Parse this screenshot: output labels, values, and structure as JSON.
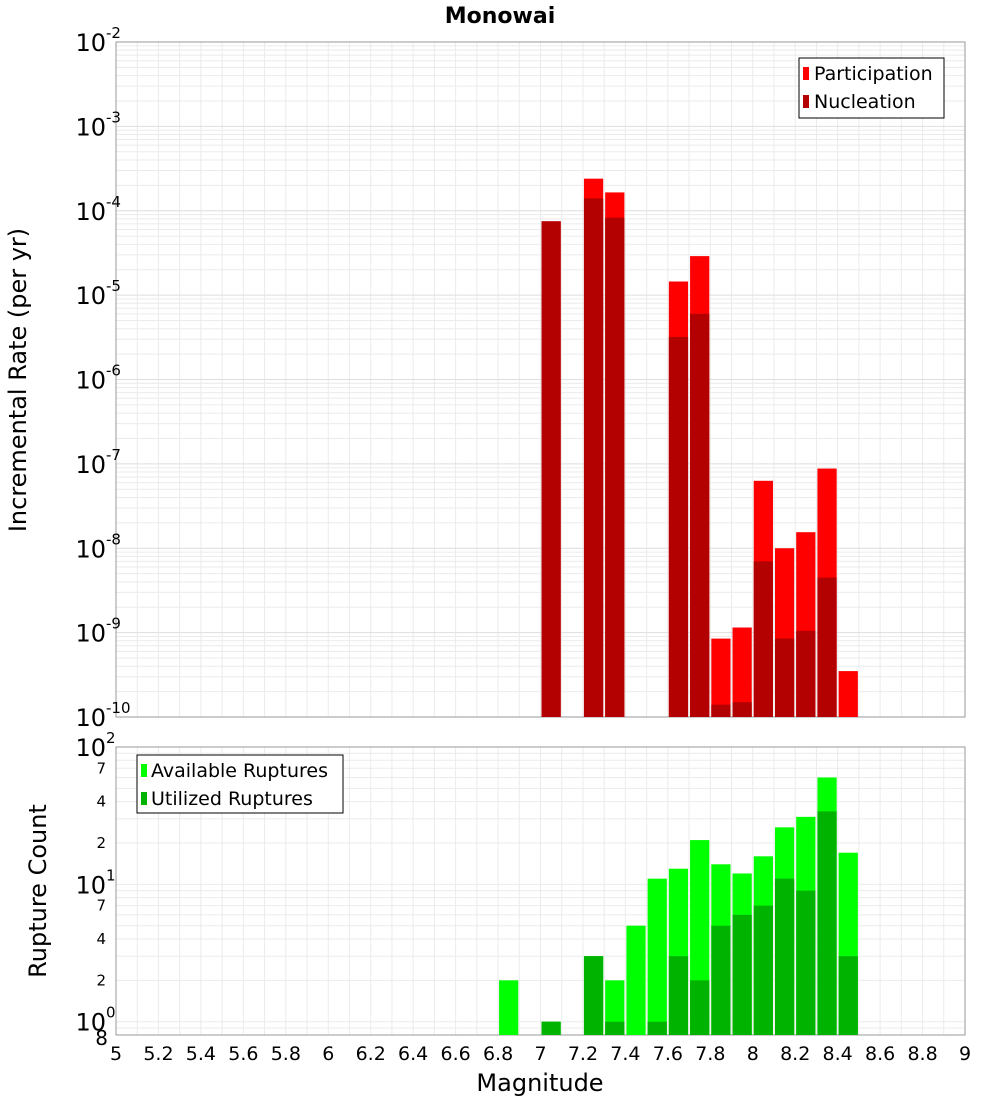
{
  "chart_data": [
    {
      "type": "bar",
      "title": "Monowai",
      "xlabel": "",
      "ylabel": "Incremental Rate (per yr)",
      "yscale": "log",
      "ylim": [
        1e-10,
        0.01
      ],
      "xlim": [
        5,
        9
      ],
      "bin_width": 0.1,
      "legend_position": "top-right",
      "y_decades": [
        {
          "base": "10",
          "exp": "-10",
          "value": 1e-10
        },
        {
          "base": "10",
          "exp": "-9",
          "value": 1e-09
        },
        {
          "base": "10",
          "exp": "-8",
          "value": 1e-08
        },
        {
          "base": "10",
          "exp": "-7",
          "value": 1e-07
        },
        {
          "base": "10",
          "exp": "-6",
          "value": 1e-06
        },
        {
          "base": "10",
          "exp": "-5",
          "value": 1e-05
        },
        {
          "base": "10",
          "exp": "-4",
          "value": 0.0001
        },
        {
          "base": "10",
          "exp": "-3",
          "value": 0.001
        },
        {
          "base": "10",
          "exp": "-2",
          "value": 0.01
        }
      ],
      "series": [
        {
          "name": "Participation",
          "color": "#ff0000",
          "x": [
            7.05,
            7.25,
            7.35,
            7.65,
            7.75,
            7.85,
            7.95,
            8.05,
            8.15,
            8.25,
            8.35,
            8.45
          ],
          "values": [
            7.5e-05,
            0.00024,
            0.000165,
            1.45e-05,
            2.9e-05,
            8.5e-10,
            1.15e-09,
            6.3e-08,
            1e-08,
            1.55e-08,
            8.8e-08,
            3.5e-10
          ]
        },
        {
          "name": "Nucleation",
          "color": "#b30000",
          "x": [
            7.05,
            7.25,
            7.35,
            7.65,
            7.75,
            7.85,
            7.95,
            8.05,
            8.15,
            8.25,
            8.35
          ],
          "values": [
            7.5e-05,
            0.00014,
            8.3e-05,
            3.2e-06,
            6e-06,
            1.4e-10,
            1.5e-10,
            7e-09,
            8.5e-10,
            1.05e-09,
            4.5e-09
          ]
        }
      ]
    },
    {
      "type": "bar",
      "title": "",
      "xlabel": "Magnitude",
      "ylabel": "Rupture Count",
      "yscale": "log",
      "ylim": [
        0.8,
        100
      ],
      "xlim": [
        5,
        9
      ],
      "bin_width": 0.1,
      "legend_position": "top-left",
      "x_ticks": [
        "5",
        "5.2",
        "5.4",
        "5.6",
        "5.8",
        "6",
        "6.2",
        "6.4",
        "6.6",
        "6.8",
        "7",
        "7.2",
        "7.4",
        "7.6",
        "7.8",
        "8",
        "8.2",
        "8.4",
        "8.6",
        "8.8",
        "9"
      ],
      "y_major_ticks": [
        {
          "base": "10",
          "exp": "0",
          "value": 1
        },
        {
          "base": "10",
          "exp": "1",
          "value": 10
        },
        {
          "base": "10",
          "exp": "2",
          "value": 100
        }
      ],
      "y_minor_ticks": [
        {
          "label": "8",
          "value": 0.8
        },
        {
          "label": "2",
          "value": 2
        },
        {
          "label": "4",
          "value": 4
        },
        {
          "label": "7",
          "value": 7
        },
        {
          "label": "2",
          "value": 20
        },
        {
          "label": "4",
          "value": 40
        },
        {
          "label": "7",
          "value": 70
        }
      ],
      "series": [
        {
          "name": "Available Ruptures",
          "color": "#00ff00",
          "x": [
            6.85,
            7.05,
            7.25,
            7.35,
            7.45,
            7.55,
            7.65,
            7.75,
            7.85,
            7.95,
            8.05,
            8.15,
            8.25,
            8.35,
            8.45
          ],
          "values": [
            2,
            1,
            3,
            2,
            5,
            11,
            13,
            21,
            14,
            12,
            16,
            26,
            31,
            60,
            17
          ]
        },
        {
          "name": "Utilized Ruptures",
          "color": "#00b300",
          "x": [
            7.05,
            7.25,
            7.35,
            7.55,
            7.65,
            7.75,
            7.85,
            7.95,
            8.05,
            8.15,
            8.25,
            8.35,
            8.45
          ],
          "values": [
            1,
            3,
            1,
            1,
            3,
            2,
            5,
            6,
            7,
            11,
            9,
            34,
            3
          ]
        }
      ]
    }
  ]
}
